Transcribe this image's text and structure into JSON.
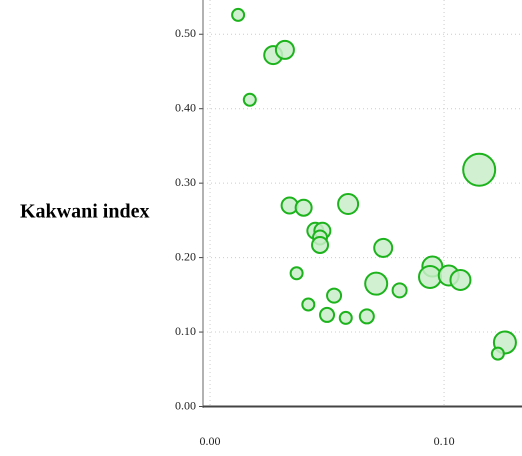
{
  "chart_data": {
    "type": "scatter",
    "y_label": "Kakwani index",
    "series": [
      {
        "color": "#1db31d",
        "fill": "#c9edc9",
        "x": [
          0.012,
          0.027,
          0.032,
          0.017,
          0.115,
          0.034,
          0.04,
          0.059,
          0.045,
          0.048,
          0.047,
          0.047,
          0.074,
          0.037,
          0.095,
          0.094,
          0.102,
          0.107,
          0.071,
          0.081,
          0.053,
          0.042,
          0.05,
          0.058,
          0.067,
          0.126,
          0.123
        ],
        "values": [
          0.526,
          0.472,
          0.479,
          0.412,
          0.318,
          0.27,
          0.267,
          0.272,
          0.236,
          0.236,
          0.227,
          0.217,
          0.213,
          0.179,
          0.188,
          0.174,
          0.176,
          0.17,
          0.165,
          0.156,
          0.149,
          0.137,
          0.123,
          0.119,
          0.121,
          0.086,
          0.071
        ],
        "sizes": [
          36,
          81,
          81,
          36,
          256,
          64,
          64,
          100,
          64,
          64,
          49,
          64,
          81,
          36,
          100,
          121,
          100,
          100,
          121,
          49,
          49,
          36,
          49,
          36,
          49,
          121,
          36
        ]
      }
    ],
    "xlim": [
      -0.003,
      0.1333
    ],
    "ylim": [
      -0.002,
      0.546
    ],
    "xticks": [
      {
        "value": 0,
        "label": "0.00"
      },
      {
        "value": 0.1,
        "label": "0.10"
      }
    ],
    "yticks": [
      {
        "value": 0,
        "label": "0.00"
      },
      {
        "value": 0.1,
        "label": "0.10"
      },
      {
        "value": 0.2,
        "label": "0.20"
      },
      {
        "value": 0.3,
        "label": "0.30"
      },
      {
        "value": 0.4,
        "label": "0.40"
      },
      {
        "value": 0.5,
        "label": "0.50"
      }
    ],
    "grid": true
  }
}
